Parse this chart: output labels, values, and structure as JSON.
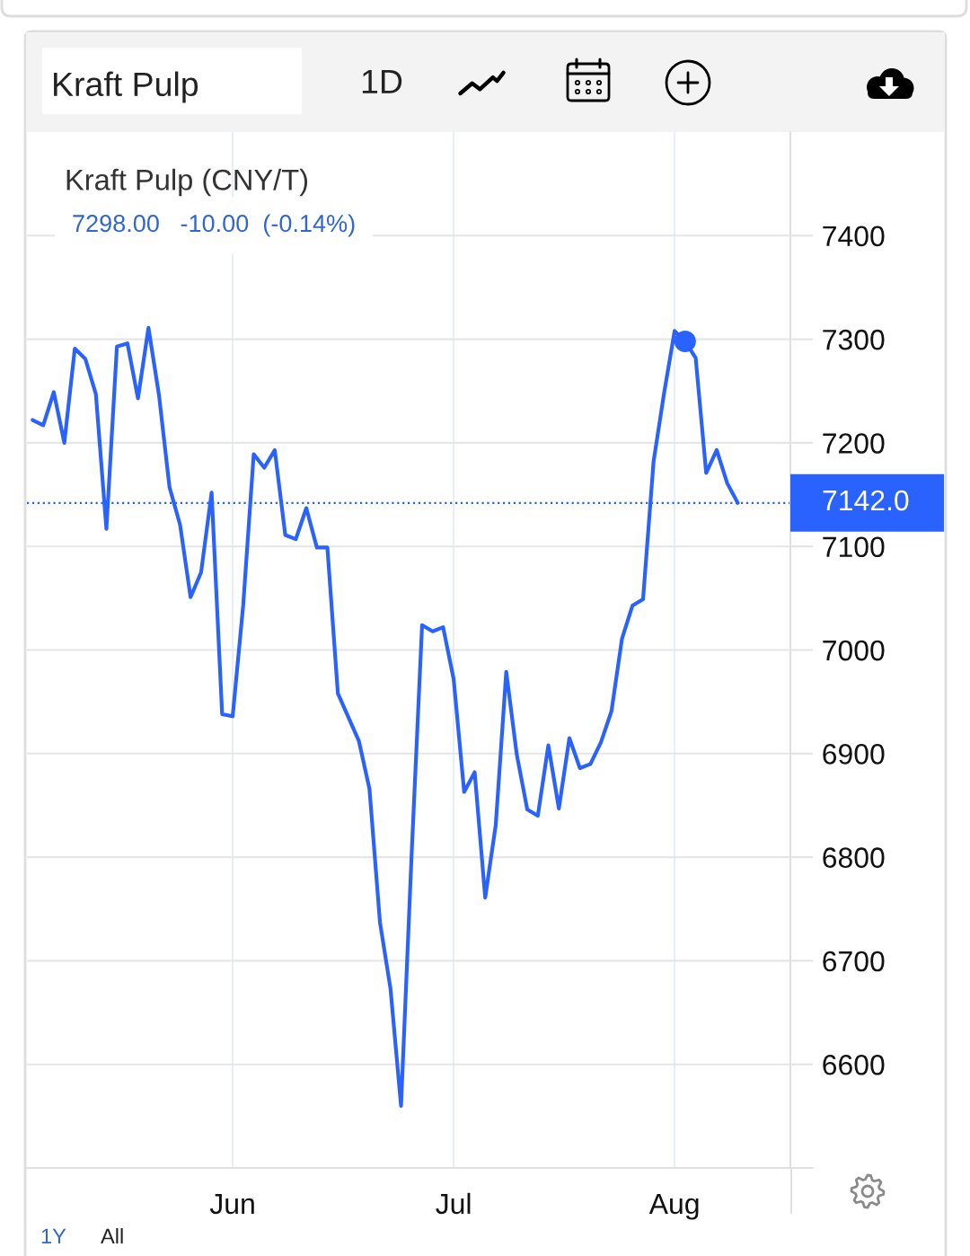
{
  "chart_data": {
    "type": "line",
    "title": "Kraft Pulp (CNY/T)",
    "subtitle": "7298.00   -10.00  (-0.14%)",
    "annotations": [
      "Kraft Pulp",
      "1D",
      "1Y",
      "All"
    ],
    "categories": [
      null,
      null,
      null,
      null,
      null,
      null,
      null,
      null,
      null,
      null,
      null,
      null,
      null,
      null,
      null,
      null,
      null,
      null,
      null,
      "Jun",
      null,
      null,
      null,
      null,
      null,
      null,
      null,
      null,
      null,
      null,
      null,
      null,
      null,
      null,
      null,
      null,
      null,
      null,
      null,
      null,
      "Jul",
      null,
      null,
      null,
      null,
      null,
      null,
      null,
      null,
      null,
      null,
      null,
      null,
      null,
      null,
      null,
      null,
      null,
      null,
      null,
      null,
      "Aug",
      null,
      null,
      null,
      null,
      null,
      null
    ],
    "series": [
      {
        "color": "#2962ff",
        "values": [
          7222,
          7217,
          7249,
          7200,
          7291,
          7281,
          7247,
          7117,
          7293,
          7296,
          7243,
          7311,
          7246,
          7157,
          7121,
          7051,
          7075,
          7152,
          6938,
          6936,
          7043,
          7189,
          7176,
          7193,
          7111,
          7107,
          7137,
          7099,
          7099,
          6958,
          6935,
          6912,
          6866,
          6737,
          6673,
          6560,
          6801,
          7024,
          7018,
          7022,
          6972,
          6863,
          6882,
          6761,
          6831,
          6979,
          6899,
          6846,
          6840,
          6908,
          6847,
          6915,
          6886,
          6890,
          6911,
          6941,
          7011,
          7043,
          7049,
          7182,
          7248,
          7308,
          7298,
          7282,
          7171,
          7193,
          7161,
          7142
        ]
      },
      {
        "type": "scatter",
        "color": "#2962ff",
        "marker": "circle",
        "values": [
          null,
          null,
          null,
          null,
          null,
          null,
          null,
          null,
          null,
          null,
          null,
          null,
          null,
          null,
          null,
          null,
          null,
          null,
          null,
          null,
          null,
          null,
          null,
          null,
          null,
          null,
          null,
          null,
          null,
          null,
          null,
          null,
          null,
          null,
          null,
          null,
          null,
          null,
          null,
          null,
          null,
          null,
          null,
          null,
          null,
          null,
          null,
          null,
          null,
          null,
          null,
          null,
          null,
          null,
          null,
          null,
          null,
          null,
          null,
          null,
          null,
          null,
          7298,
          null,
          null,
          null,
          null,
          null
        ]
      }
    ],
    "ylim": [
      6500,
      7500
    ],
    "yticks": [
      6600,
      6700,
      6800,
      6900,
      7000,
      7100,
      7200,
      7300,
      7400
    ],
    "grid": true,
    "ref_lines": [
      {
        "axis": "y",
        "value": 7142,
        "label": "7142.0",
        "color": "#2962ff",
        "line_style": "dotted"
      }
    ]
  }
}
